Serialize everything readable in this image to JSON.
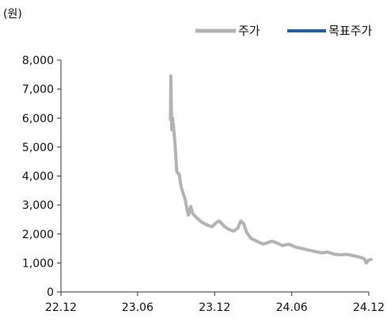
{
  "chart_data": {
    "type": "line",
    "unit_label": "(원)",
    "legend_position": "top-right",
    "grid": false,
    "ylim": [
      0,
      8000
    ],
    "y_ticks": [
      0,
      1000,
      2000,
      3000,
      4000,
      5000,
      6000,
      7000,
      8000
    ],
    "y_tick_labels": [
      "0",
      "1,000",
      "2,000",
      "3,000",
      "4,000",
      "5,000",
      "6,000",
      "7,000",
      "8,000"
    ],
    "x_ticks": [
      "2022-12",
      "2023-06",
      "2023-12",
      "2024-06",
      "2024-12"
    ],
    "x_tick_labels": [
      "22.12",
      "23.06",
      "23.12",
      "24.06",
      "24.12"
    ],
    "series": [
      {
        "name": "주가",
        "color": "#b3b3b3",
        "points": [
          [
            "2023-08-18",
            5950
          ],
          [
            "2023-08-19",
            7450
          ],
          [
            "2023-08-21",
            5600
          ],
          [
            "2023-08-23",
            6000
          ],
          [
            "2023-08-26",
            5600
          ],
          [
            "2023-08-29",
            5100
          ],
          [
            "2023-09-02",
            4150
          ],
          [
            "2023-09-08",
            4050
          ],
          [
            "2023-09-12",
            3650
          ],
          [
            "2023-09-16",
            3450
          ],
          [
            "2023-09-22",
            3200
          ],
          [
            "2023-09-27",
            2800
          ],
          [
            "2023-09-30",
            2650
          ],
          [
            "2023-10-05",
            2950
          ],
          [
            "2023-10-10",
            2700
          ],
          [
            "2023-10-20",
            2550
          ],
          [
            "2023-11-01",
            2400
          ],
          [
            "2023-11-15",
            2300
          ],
          [
            "2023-11-25",
            2250
          ],
          [
            "2023-12-05",
            2400
          ],
          [
            "2023-12-12",
            2450
          ],
          [
            "2023-12-25",
            2250
          ],
          [
            "2024-01-05",
            2150
          ],
          [
            "2024-01-15",
            2100
          ],
          [
            "2024-01-25",
            2200
          ],
          [
            "2024-02-01",
            2450
          ],
          [
            "2024-02-08",
            2350
          ],
          [
            "2024-02-15",
            2050
          ],
          [
            "2024-02-25",
            1850
          ],
          [
            "2024-03-10",
            1750
          ],
          [
            "2024-03-25",
            1650
          ],
          [
            "2024-04-05",
            1700
          ],
          [
            "2024-04-15",
            1750
          ],
          [
            "2024-04-25",
            1700
          ],
          [
            "2024-05-10",
            1600
          ],
          [
            "2024-05-25",
            1650
          ],
          [
            "2024-06-10",
            1550
          ],
          [
            "2024-06-25",
            1500
          ],
          [
            "2024-07-10",
            1450
          ],
          [
            "2024-07-25",
            1400
          ],
          [
            "2024-08-10",
            1350
          ],
          [
            "2024-08-25",
            1380
          ],
          [
            "2024-09-10",
            1300
          ],
          [
            "2024-09-25",
            1280
          ],
          [
            "2024-10-10",
            1300
          ],
          [
            "2024-10-25",
            1250
          ],
          [
            "2024-11-10",
            1200
          ],
          [
            "2024-11-20",
            1150
          ],
          [
            "2024-11-25",
            1000
          ],
          [
            "2024-12-01",
            1100
          ],
          [
            "2024-12-06",
            1120
          ]
        ]
      },
      {
        "name": "목표주가",
        "color": "#1f5fa8",
        "points": []
      }
    ]
  }
}
